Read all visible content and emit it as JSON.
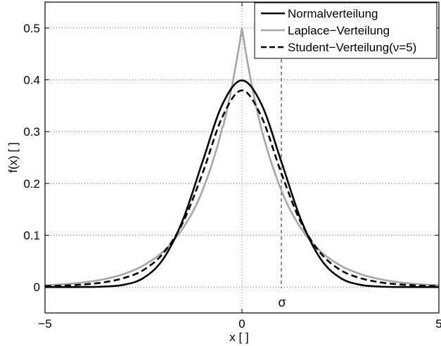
{
  "chart_data": {
    "type": "line",
    "xlabel": "x [ ]",
    "ylabel": "f(x) [ ]",
    "xlim": [
      -5,
      5
    ],
    "ylim": [
      -0.05,
      0.55
    ],
    "xticks": [
      -5,
      0,
      5
    ],
    "xtick_labels": [
      "−5",
      "0",
      "5"
    ],
    "yticks": [
      0,
      0.1,
      0.2,
      0.3,
      0.4,
      0.5
    ],
    "ytick_labels": [
      "0",
      "0.1",
      "0.2",
      "0.3",
      "0.4",
      "0.5"
    ],
    "grid": true,
    "legend_position": "top-right",
    "x": [
      -5,
      -4.5,
      -4,
      -3.5,
      -3,
      -2.5,
      -2,
      -1.5,
      -1,
      -0.5,
      0,
      0.5,
      1,
      1.5,
      2,
      2.5,
      3,
      3.5,
      4,
      4.5,
      5
    ],
    "series": [
      {
        "name": "Normalverteilung",
        "color": "#000000",
        "dash": "solid",
        "values": [
          0.0,
          0.0,
          0.0001,
          0.0009,
          0.0044,
          0.0175,
          0.054,
          0.1295,
          0.242,
          0.3521,
          0.3989,
          0.3521,
          0.242,
          0.1295,
          0.054,
          0.0175,
          0.0044,
          0.0009,
          0.0001,
          0.0,
          0.0
        ]
      },
      {
        "name": "Laplace−Verteilung",
        "color": "#a6a6a6",
        "dash": "solid",
        "values": [
          0.0034,
          0.0055,
          0.0092,
          0.0152,
          0.0252,
          0.0416,
          0.0686,
          0.1131,
          0.1866,
          0.3076,
          0.5,
          0.3076,
          0.1866,
          0.1131,
          0.0686,
          0.0416,
          0.0252,
          0.0152,
          0.0092,
          0.0055,
          0.0034
        ]
      },
      {
        "name": "Student−Verteilung(ν=5)",
        "color": "#000000",
        "dash": "dashed",
        "values": [
          0.0018,
          0.0029,
          0.0051,
          0.0092,
          0.0173,
          0.0329,
          0.0651,
          0.1245,
          0.2197,
          0.3279,
          0.3796,
          0.3279,
          0.2197,
          0.1245,
          0.0651,
          0.0329,
          0.0173,
          0.0092,
          0.0051,
          0.0029,
          0.0018
        ]
      }
    ],
    "annotations": [
      {
        "label": "σ",
        "x": 1,
        "style": "dashed vertical line"
      }
    ]
  }
}
